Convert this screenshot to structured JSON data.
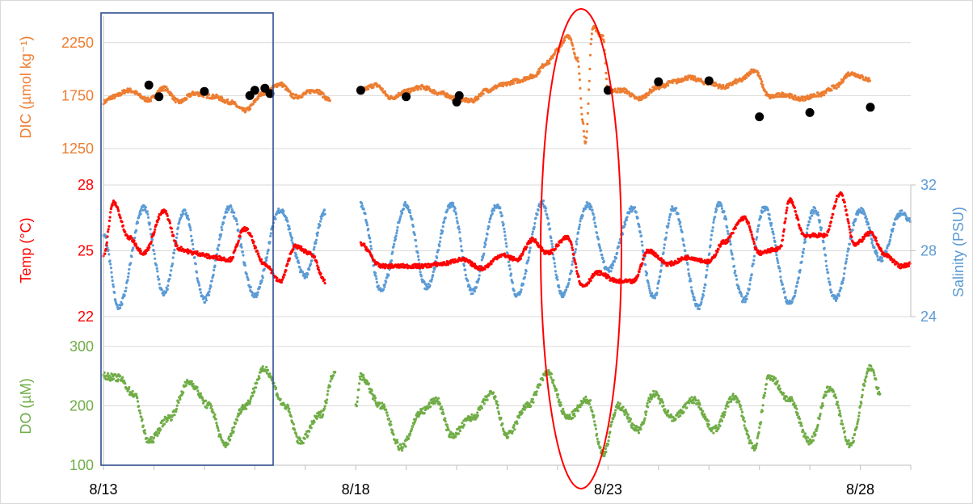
{
  "chart_data": [
    {
      "type": "scatter",
      "panel": "dic",
      "ylabel": "DIC (µmol kg⁻¹)",
      "ylim": [
        1250,
        2500
      ],
      "yticks": [
        1250,
        1750,
        2250
      ],
      "color": "#ED7D31",
      "series": [
        {
          "values": [
            [
              13.0,
              1690
            ],
            [
              13.2,
              1740
            ],
            [
              13.5,
              1800
            ],
            [
              13.9,
              1710
            ],
            [
              14.2,
              1820
            ],
            [
              14.5,
              1690
            ],
            [
              14.8,
              1770
            ],
            [
              15.2,
              1740
            ],
            [
              15.5,
              1690
            ],
            [
              15.8,
              1610
            ],
            [
              16.2,
              1780
            ],
            [
              16.5,
              1860
            ],
            [
              16.8,
              1740
            ],
            [
              17.2,
              1800
            ],
            [
              17.5,
              1710
            ],
            [
              18.1,
              1800
            ],
            [
              18.4,
              1850
            ],
            [
              18.7,
              1730
            ],
            [
              19.0,
              1790
            ],
            [
              19.3,
              1830
            ],
            [
              19.7,
              1770
            ],
            [
              20.0,
              1720
            ],
            [
              20.3,
              1700
            ],
            [
              20.6,
              1800
            ],
            [
              20.9,
              1850
            ],
            [
              21.2,
              1890
            ],
            [
              21.5,
              1930
            ],
            [
              21.8,
              2060
            ],
            [
              22.0,
              2180
            ],
            [
              22.2,
              2320
            ],
            [
              22.4,
              2100
            ],
            [
              22.5,
              1500
            ],
            [
              22.55,
              1300
            ],
            [
              22.7,
              2400
            ],
            [
              22.9,
              2300
            ],
            [
              23.0,
              1800
            ],
            [
              23.3,
              1800
            ],
            [
              23.6,
              1720
            ],
            [
              24.0,
              1830
            ],
            [
              24.3,
              1880
            ],
            [
              24.6,
              1920
            ],
            [
              25.0,
              1870
            ],
            [
              25.3,
              1830
            ],
            [
              25.6,
              1890
            ],
            [
              25.9,
              1990
            ],
            [
              26.2,
              1740
            ],
            [
              26.5,
              1760
            ],
            [
              26.8,
              1720
            ],
            [
              27.2,
              1760
            ],
            [
              27.5,
              1830
            ],
            [
              27.8,
              1960
            ],
            [
              28.2,
              1900
            ]
          ]
        }
      ],
      "samples": [
        [
          13.9,
          1850
        ],
        [
          14.1,
          1740
        ],
        [
          15.0,
          1790
        ],
        [
          15.9,
          1750
        ],
        [
          16.0,
          1800
        ],
        [
          16.2,
          1820
        ],
        [
          16.3,
          1770
        ],
        [
          18.1,
          1800
        ],
        [
          19.0,
          1740
        ],
        [
          20.0,
          1690
        ],
        [
          20.05,
          1750
        ],
        [
          23.0,
          1800
        ],
        [
          24.0,
          1880
        ],
        [
          25.0,
          1890
        ],
        [
          26.0,
          1550
        ],
        [
          27.0,
          1590
        ],
        [
          28.2,
          1640
        ]
      ]
    },
    {
      "type": "scatter",
      "panel": "temp-sal",
      "ylabel": "Temp (°C)",
      "y2label": "Salinity (PSU)",
      "ylim": [
        22,
        28
      ],
      "yticks": [
        22,
        25,
        28
      ],
      "y2lim": [
        24,
        32
      ],
      "y2ticks": [
        24,
        28,
        32
      ],
      "series": [
        {
          "color": "#FF0000",
          "axis": "left",
          "values": [
            [
              13.0,
              24.8
            ],
            [
              13.2,
              27.2
            ],
            [
              13.5,
              25.6
            ],
            [
              13.8,
              24.9
            ],
            [
              14.2,
              26.8
            ],
            [
              14.5,
              25.1
            ],
            [
              14.8,
              24.9
            ],
            [
              15.2,
              24.7
            ],
            [
              15.5,
              24.6
            ],
            [
              15.8,
              26.0
            ],
            [
              16.2,
              24.4
            ],
            [
              16.5,
              23.6
            ],
            [
              16.8,
              25.2
            ],
            [
              17.1,
              24.9
            ],
            [
              17.4,
              23.6
            ],
            [
              17.7,
              25.5
            ],
            [
              18.1,
              25.3
            ],
            [
              18.5,
              24.3
            ],
            [
              18.9,
              24.3
            ],
            [
              19.3,
              24.3
            ],
            [
              19.7,
              24.4
            ],
            [
              20.1,
              24.6
            ],
            [
              20.5,
              24.2
            ],
            [
              20.9,
              24.8
            ],
            [
              21.2,
              24.6
            ],
            [
              21.5,
              25.5
            ],
            [
              21.8,
              24.9
            ],
            [
              22.2,
              25.6
            ],
            [
              22.5,
              23.4
            ],
            [
              22.8,
              24.0
            ],
            [
              23.2,
              23.6
            ],
            [
              23.5,
              23.6
            ],
            [
              23.8,
              25.0
            ],
            [
              24.2,
              24.4
            ],
            [
              24.6,
              24.7
            ],
            [
              25.0,
              24.5
            ],
            [
              25.3,
              25.4
            ],
            [
              25.7,
              26.5
            ],
            [
              26.0,
              24.9
            ],
            [
              26.4,
              25.1
            ],
            [
              26.6,
              27.3
            ],
            [
              26.9,
              25.7
            ],
            [
              27.3,
              25.7
            ],
            [
              27.6,
              27.6
            ],
            [
              27.9,
              25.3
            ],
            [
              28.2,
              25.8
            ],
            [
              28.5,
              24.8
            ],
            [
              28.8,
              24.3
            ],
            [
              29.0,
              24.4
            ]
          ]
        },
        {
          "color": "#5B9BD5",
          "axis": "right",
          "values": [
            [
              13.0,
              29.0
            ],
            [
              13.3,
              24.6
            ],
            [
              13.8,
              30.6
            ],
            [
              14.2,
              25.4
            ],
            [
              14.6,
              30.4
            ],
            [
              15.0,
              25.0
            ],
            [
              15.5,
              30.6
            ],
            [
              16.0,
              25.3
            ],
            [
              16.5,
              30.5
            ],
            [
              17.0,
              26.5
            ],
            [
              17.4,
              30.4
            ],
            [
              17.7,
              30.3
            ],
            [
              18.1,
              30.8
            ],
            [
              18.5,
              25.6
            ],
            [
              19.0,
              30.8
            ],
            [
              19.4,
              25.8
            ],
            [
              19.9,
              30.8
            ],
            [
              20.3,
              25.5
            ],
            [
              20.8,
              30.8
            ],
            [
              21.2,
              25.3
            ],
            [
              21.7,
              30.9
            ],
            [
              22.1,
              25.3
            ],
            [
              22.6,
              30.8
            ],
            [
              23.0,
              26.8
            ],
            [
              23.5,
              30.6
            ],
            [
              23.9,
              25.2
            ],
            [
              24.3,
              30.6
            ],
            [
              24.8,
              24.6
            ],
            [
              25.2,
              30.8
            ],
            [
              25.7,
              25.0
            ],
            [
              26.1,
              30.6
            ],
            [
              26.6,
              24.8
            ],
            [
              27.1,
              30.5
            ],
            [
              27.5,
              25.1
            ],
            [
              28.0,
              30.5
            ],
            [
              28.4,
              27.5
            ],
            [
              28.8,
              30.3
            ],
            [
              29.0,
              29.8
            ]
          ]
        }
      ]
    },
    {
      "type": "scatter",
      "panel": "do",
      "ylabel": "DO (µM)",
      "ylim": [
        100,
        300
      ],
      "yticks": [
        100,
        200,
        300
      ],
      "xticks": [
        "8/13",
        "8/18",
        "8/23",
        "8/28"
      ],
      "xtick_values": [
        13,
        18,
        23,
        28
      ],
      "xlim": [
        13,
        29
      ],
      "color": "#70AD47",
      "series": [
        {
          "values": [
            [
              13.0,
              250
            ],
            [
              13.3,
              247
            ],
            [
              13.6,
              220
            ],
            [
              13.9,
              140
            ],
            [
              14.3,
              180
            ],
            [
              14.7,
              240
            ],
            [
              15.1,
              200
            ],
            [
              15.4,
              135
            ],
            [
              15.8,
              200
            ],
            [
              16.2,
              262
            ],
            [
              16.6,
              200
            ],
            [
              16.9,
              140
            ],
            [
              17.3,
              185
            ],
            [
              17.6,
              260
            ],
            [
              18.0,
              200
            ],
            [
              18.1,
              250
            ],
            [
              18.5,
              200
            ],
            [
              18.9,
              130
            ],
            [
              19.3,
              190
            ],
            [
              19.6,
              210
            ],
            [
              19.9,
              150
            ],
            [
              20.3,
              180
            ],
            [
              20.7,
              220
            ],
            [
              21.0,
              150
            ],
            [
              21.4,
              200
            ],
            [
              21.8,
              255
            ],
            [
              22.2,
              180
            ],
            [
              22.6,
              210
            ],
            [
              22.9,
              120
            ],
            [
              23.2,
              200
            ],
            [
              23.6,
              160
            ],
            [
              23.9,
              220
            ],
            [
              24.3,
              180
            ],
            [
              24.7,
              210
            ],
            [
              25.1,
              160
            ],
            [
              25.5,
              215
            ],
            [
              25.9,
              130
            ],
            [
              26.2,
              250
            ],
            [
              26.6,
              210
            ],
            [
              27.0,
              140
            ],
            [
              27.4,
              230
            ],
            [
              27.8,
              135
            ],
            [
              28.2,
              265
            ],
            [
              28.4,
              220
            ]
          ]
        }
      ]
    }
  ]
}
